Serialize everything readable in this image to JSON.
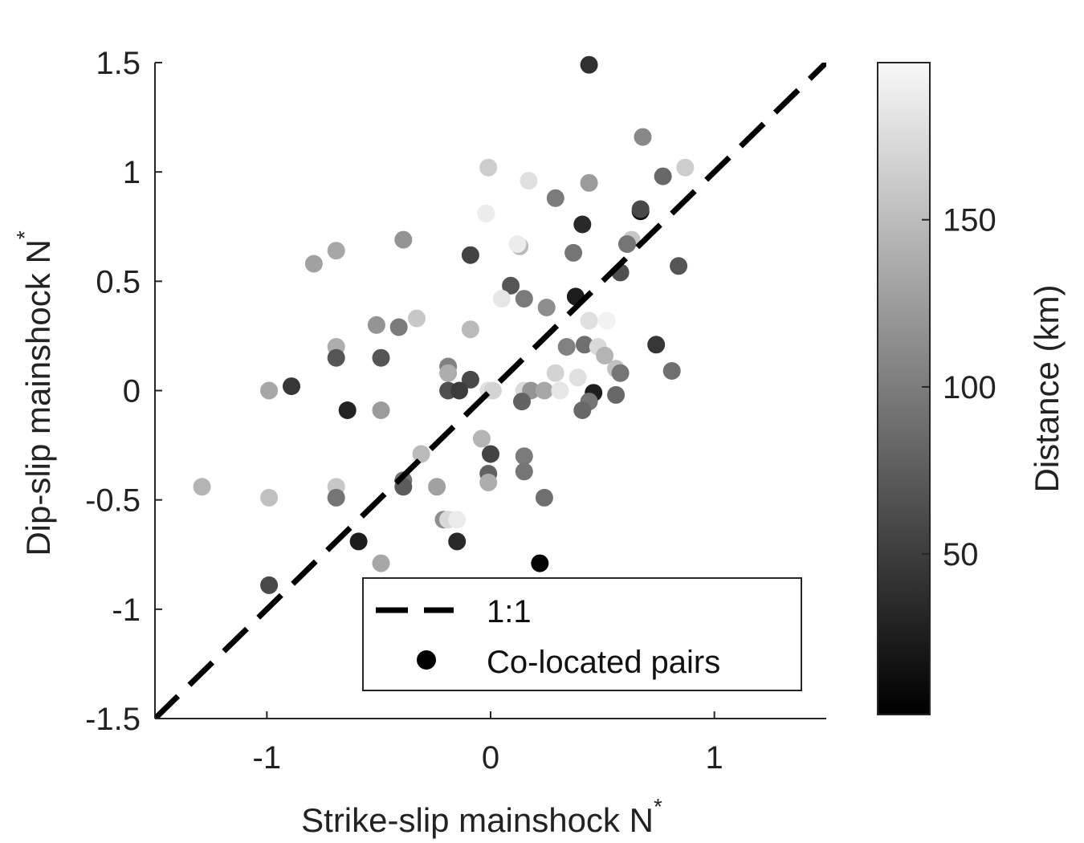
{
  "chart_data": {
    "type": "scatter",
    "xlabel": "Strike-slip mainshock N",
    "xlabel_superscript": "*",
    "ylabel": "Dip-slip mainshock N",
    "ylabel_superscript": "*",
    "xlim": [
      -1.5,
      1.5
    ],
    "ylim": [
      -1.5,
      1.5
    ],
    "x_ticks": [
      -1,
      0,
      1
    ],
    "x_tick_labels": [
      "-1",
      "0",
      "1"
    ],
    "y_ticks": [
      -1.5,
      -1,
      -0.5,
      0,
      0.5,
      1,
      1.5
    ],
    "y_tick_labels": [
      "-1.5",
      "-1",
      "-0.5",
      "0",
      "0.5",
      "1",
      "1.5"
    ],
    "grid": false,
    "colormap": "gray",
    "colorbar": {
      "label": "Distance (km)",
      "range": [
        2,
        197
      ],
      "ticks": [
        50,
        100,
        150
      ],
      "tick_labels": [
        "50",
        "100",
        "150"
      ]
    },
    "reference_line": {
      "label": "1:1",
      "x": [
        -1.5,
        1.5
      ],
      "y": [
        -1.5,
        1.5
      ],
      "style": "dashed",
      "color": "#000000"
    },
    "legend": {
      "position": "bottom-center",
      "entries": [
        {
          "label": "1:1",
          "marker": "dashed-line"
        },
        {
          "label": "Co-located pairs",
          "marker": "filled-circle"
        }
      ]
    },
    "series": [
      {
        "name": "Co-located pairs",
        "points": [
          {
            "x": 0.44,
            "y": 1.49,
            "d": 40
          },
          {
            "x": 0.68,
            "y": 1.16,
            "d": 110
          },
          {
            "x": 0.87,
            "y": 1.02,
            "d": 165
          },
          {
            "x": 0.77,
            "y": 0.98,
            "d": 85
          },
          {
            "x": -0.01,
            "y": 1.02,
            "d": 165
          },
          {
            "x": 0.17,
            "y": 0.96,
            "d": 180
          },
          {
            "x": 0.44,
            "y": 0.95,
            "d": 125
          },
          {
            "x": 0.29,
            "y": 0.88,
            "d": 100
          },
          {
            "x": 0.67,
            "y": 0.82,
            "d": 15
          },
          {
            "x": 0.67,
            "y": 0.83,
            "d": 60
          },
          {
            "x": -0.02,
            "y": 0.81,
            "d": 190
          },
          {
            "x": 0.41,
            "y": 0.76,
            "d": 35
          },
          {
            "x": 0.63,
            "y": 0.69,
            "d": 160
          },
          {
            "x": 0.61,
            "y": 0.67,
            "d": 95
          },
          {
            "x": 0.13,
            "y": 0.66,
            "d": 150
          },
          {
            "x": 0.12,
            "y": 0.67,
            "d": 190
          },
          {
            "x": -0.39,
            "y": 0.69,
            "d": 120
          },
          {
            "x": -0.69,
            "y": 0.64,
            "d": 135
          },
          {
            "x": -0.79,
            "y": 0.58,
            "d": 130
          },
          {
            "x": -0.09,
            "y": 0.62,
            "d": 55
          },
          {
            "x": 0.37,
            "y": 0.63,
            "d": 95
          },
          {
            "x": 0.84,
            "y": 0.57,
            "d": 70
          },
          {
            "x": 0.58,
            "y": 0.54,
            "d": 65
          },
          {
            "x": 0.09,
            "y": 0.48,
            "d": 70
          },
          {
            "x": 0.38,
            "y": 0.43,
            "d": 25
          },
          {
            "x": 0.05,
            "y": 0.42,
            "d": 185
          },
          {
            "x": 0.15,
            "y": 0.42,
            "d": 100
          },
          {
            "x": 0.25,
            "y": 0.38,
            "d": 115
          },
          {
            "x": -0.33,
            "y": 0.33,
            "d": 160
          },
          {
            "x": 0.44,
            "y": 0.32,
            "d": 180
          },
          {
            "x": 0.52,
            "y": 0.32,
            "d": 195
          },
          {
            "x": -0.51,
            "y": 0.3,
            "d": 120
          },
          {
            "x": -0.41,
            "y": 0.29,
            "d": 100
          },
          {
            "x": -0.09,
            "y": 0.28,
            "d": 150
          },
          {
            "x": 0.34,
            "y": 0.2,
            "d": 105
          },
          {
            "x": 0.42,
            "y": 0.21,
            "d": 90
          },
          {
            "x": 0.48,
            "y": 0.2,
            "d": 175
          },
          {
            "x": 0.51,
            "y": 0.16,
            "d": 145
          },
          {
            "x": 0.74,
            "y": 0.21,
            "d": 45
          },
          {
            "x": -0.69,
            "y": 0.2,
            "d": 140
          },
          {
            "x": -0.69,
            "y": 0.15,
            "d": 70
          },
          {
            "x": -0.49,
            "y": 0.15,
            "d": 70
          },
          {
            "x": -0.19,
            "y": 0.11,
            "d": 105
          },
          {
            "x": -0.19,
            "y": 0.08,
            "d": 140
          },
          {
            "x": 0.29,
            "y": 0.08,
            "d": 170
          },
          {
            "x": 0.56,
            "y": 0.1,
            "d": 155
          },
          {
            "x": 0.58,
            "y": 0.08,
            "d": 95
          },
          {
            "x": 0.81,
            "y": 0.09,
            "d": 90
          },
          {
            "x": 0.39,
            "y": 0.06,
            "d": 180
          },
          {
            "x": -0.09,
            "y": 0.05,
            "d": 60
          },
          {
            "x": -0.89,
            "y": 0.02,
            "d": 45
          },
          {
            "x": -0.99,
            "y": 0.0,
            "d": 135
          },
          {
            "x": -0.19,
            "y": 0.0,
            "d": 65
          },
          {
            "x": -0.14,
            "y": 0.0,
            "d": 50
          },
          {
            "x": -0.01,
            "y": 0.0,
            "d": 180
          },
          {
            "x": 0.01,
            "y": 0.0,
            "d": 170
          },
          {
            "x": 0.15,
            "y": 0.0,
            "d": 175
          },
          {
            "x": 0.18,
            "y": 0.0,
            "d": 120
          },
          {
            "x": 0.24,
            "y": 0.0,
            "d": 135
          },
          {
            "x": 0.31,
            "y": 0.0,
            "d": 185
          },
          {
            "x": 0.46,
            "y": -0.01,
            "d": 25
          },
          {
            "x": 0.56,
            "y": -0.02,
            "d": 85
          },
          {
            "x": 0.14,
            "y": -0.05,
            "d": 80
          },
          {
            "x": 0.44,
            "y": -0.05,
            "d": 95
          },
          {
            "x": 0.41,
            "y": -0.09,
            "d": 85
          },
          {
            "x": -0.64,
            "y": -0.09,
            "d": 30
          },
          {
            "x": -0.49,
            "y": -0.09,
            "d": 125
          },
          {
            "x": -0.04,
            "y": -0.22,
            "d": 145
          },
          {
            "x": 0.0,
            "y": -0.29,
            "d": 55
          },
          {
            "x": 0.15,
            "y": -0.3,
            "d": 100
          },
          {
            "x": -0.31,
            "y": -0.29,
            "d": 150
          },
          {
            "x": -0.01,
            "y": -0.38,
            "d": 80
          },
          {
            "x": 0.15,
            "y": -0.37,
            "d": 95
          },
          {
            "x": -0.01,
            "y": -0.42,
            "d": 140
          },
          {
            "x": -0.39,
            "y": -0.41,
            "d": 95
          },
          {
            "x": -0.39,
            "y": -0.44,
            "d": 75
          },
          {
            "x": -1.29,
            "y": -0.44,
            "d": 145
          },
          {
            "x": -0.69,
            "y": -0.44,
            "d": 160
          },
          {
            "x": -0.69,
            "y": -0.49,
            "d": 95
          },
          {
            "x": -0.99,
            "y": -0.49,
            "d": 155
          },
          {
            "x": -0.24,
            "y": -0.44,
            "d": 130
          },
          {
            "x": 0.24,
            "y": -0.49,
            "d": 90
          },
          {
            "x": -0.21,
            "y": -0.59,
            "d": 115
          },
          {
            "x": -0.19,
            "y": -0.59,
            "d": 175
          },
          {
            "x": -0.15,
            "y": -0.59,
            "d": 190
          },
          {
            "x": -0.59,
            "y": -0.69,
            "d": 25
          },
          {
            "x": -0.15,
            "y": -0.69,
            "d": 35
          },
          {
            "x": -0.49,
            "y": -0.79,
            "d": 135
          },
          {
            "x": 0.22,
            "y": -0.79,
            "d": 5
          },
          {
            "x": -0.99,
            "y": -0.89,
            "d": 60
          }
        ]
      }
    ]
  }
}
